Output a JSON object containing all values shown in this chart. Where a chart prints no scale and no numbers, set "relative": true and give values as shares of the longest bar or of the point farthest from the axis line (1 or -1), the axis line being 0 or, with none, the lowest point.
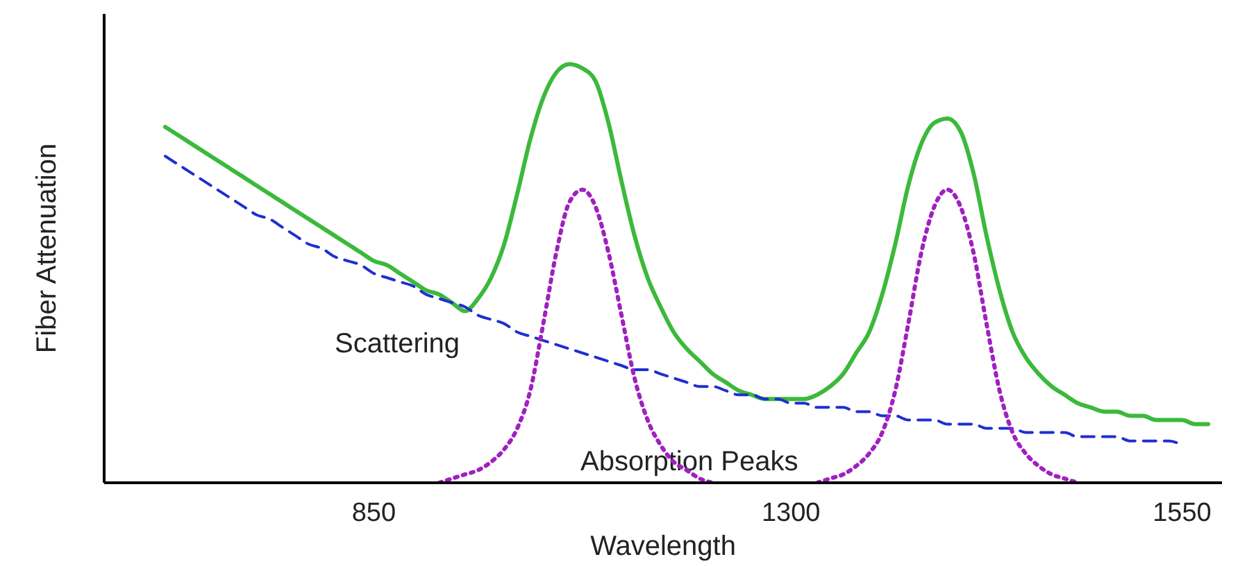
{
  "chart_data": {
    "type": "line",
    "relative": true,
    "xlabel": "Wavelength",
    "ylabel": "Fiber Attenuation",
    "grid": false,
    "legend": false,
    "marker": "none",
    "categories": [
      null,
      null,
      null,
      null,
      null,
      null,
      null,
      null,
      null,
      null,
      null,
      null,
      null,
      null,
      null,
      null,
      "850",
      null,
      null,
      null,
      null,
      null,
      null,
      null,
      null,
      null,
      null,
      null,
      null,
      null,
      null,
      null,
      null,
      null,
      null,
      null,
      null,
      null,
      null,
      null,
      null,
      null,
      null,
      null,
      null,
      null,
      null,
      null,
      "1300",
      null,
      null,
      null,
      null,
      null,
      null,
      null,
      null,
      null,
      null,
      null,
      null,
      null,
      null,
      null,
      null,
      null,
      null,
      null,
      null,
      null,
      null,
      null,
      null,
      null,
      null,
      null,
      null,
      null,
      "1550",
      null,
      null
    ],
    "series": [
      {
        "color": "#3cb93c",
        "line_style": "solid",
        "values": [
          0.85,
          0.83,
          0.81,
          0.79,
          0.77,
          0.75,
          0.73,
          0.71,
          0.69,
          0.67,
          0.65,
          0.63,
          0.61,
          0.59,
          0.57,
          0.55,
          0.53,
          0.52,
          0.5,
          0.48,
          0.46,
          0.45,
          0.43,
          0.41,
          0.44,
          0.49,
          0.57,
          0.69,
          0.82,
          0.92,
          0.98,
          1,
          0.99,
          0.96,
          0.86,
          0.72,
          0.59,
          0.49,
          0.42,
          0.36,
          0.32,
          0.29,
          0.26,
          0.24,
          0.22,
          0.21,
          0.2,
          0.2,
          0.2,
          0.2,
          0.21,
          0.23,
          0.26,
          0.31,
          0.36,
          0.45,
          0.57,
          0.71,
          0.81,
          0.86,
          0.87,
          0.84,
          0.74,
          0.59,
          0.46,
          0.36,
          0.3,
          0.26,
          0.23,
          0.21,
          0.19,
          0.18,
          0.17,
          0.17,
          0.16,
          0.16,
          0.15,
          0.15,
          0.15,
          0.14,
          0.14
        ]
      },
      {
        "name": "Scattering",
        "color": "#1f2fd0",
        "line_style": "dashed",
        "values": [
          0.78,
          0.76,
          0.74,
          0.72,
          0.7,
          0.68,
          0.66,
          0.64,
          0.63,
          0.61,
          0.59,
          0.57,
          0.56,
          0.54,
          0.53,
          0.52,
          0.5,
          0.49,
          0.48,
          0.47,
          0.45,
          0.44,
          0.43,
          0.42,
          0.4,
          0.39,
          0.38,
          0.36,
          0.35,
          0.34,
          0.33,
          0.32,
          0.31,
          0.3,
          0.29,
          0.28,
          0.27,
          0.27,
          0.26,
          0.25,
          0.24,
          0.23,
          0.23,
          0.22,
          0.21,
          0.21,
          0.2,
          0.2,
          0.19,
          0.19,
          0.18,
          0.18,
          0.18,
          0.17,
          0.17,
          0.16,
          0.16,
          0.15,
          0.15,
          0.15,
          0.14,
          0.14,
          0.14,
          0.13,
          0.13,
          0.13,
          0.12,
          0.12,
          0.12,
          0.12,
          0.11,
          0.11,
          0.11,
          0.11,
          0.1,
          0.1,
          0.1,
          0.1,
          0.09,
          null,
          null
        ]
      },
      {
        "name": "Absorption Peaks",
        "color": "#a020c0",
        "line_style": "dotted",
        "values": [
          null,
          null,
          null,
          null,
          null,
          null,
          null,
          null,
          null,
          null,
          null,
          null,
          null,
          null,
          null,
          null,
          null,
          null,
          null,
          null,
          null,
          0,
          0.01,
          0.02,
          0.03,
          0.05,
          0.08,
          0.13,
          0.22,
          0.38,
          0.55,
          0.67,
          0.7,
          0.66,
          0.55,
          0.4,
          0.25,
          0.15,
          0.09,
          0.05,
          0.03,
          0.01,
          0,
          null,
          null,
          null,
          null,
          null,
          null,
          null,
          0,
          0.01,
          0.02,
          0.04,
          0.07,
          0.12,
          0.22,
          0.38,
          0.55,
          0.66,
          0.7,
          0.66,
          0.55,
          0.38,
          0.22,
          0.12,
          0.07,
          0.04,
          0.02,
          0.01,
          0,
          null,
          null,
          null,
          null,
          null,
          null,
          null,
          null,
          null,
          null
        ]
      }
    ]
  }
}
